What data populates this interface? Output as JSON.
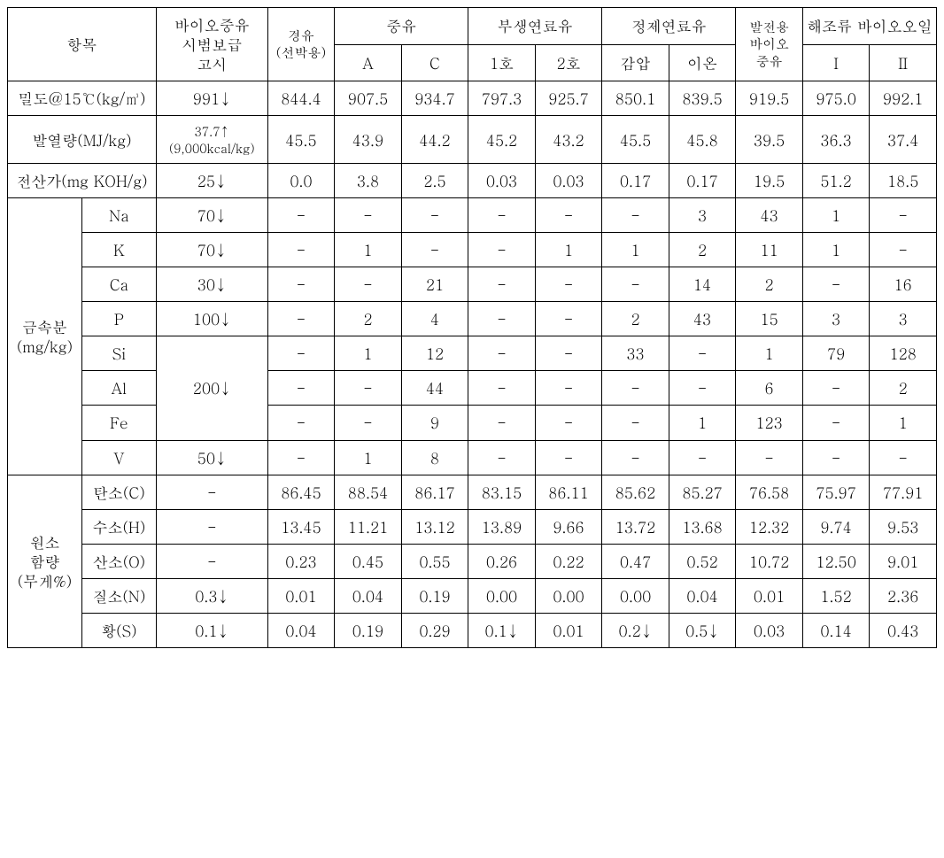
{
  "table": {
    "type": "table",
    "background_color": "#ffffff",
    "border_color": "#000000",
    "font_family": "Batang, serif",
    "font_size_main": 17,
    "font_size_small": 14,
    "headers": {
      "item": "항목",
      "spec": "바이오중유\n시범보급\n고시",
      "diesel": "경유\n(선박용)",
      "heavy_oil": "중유",
      "heavy_oil_A": "A",
      "heavy_oil_C": "C",
      "byproduct": "부생연료유",
      "byproduct_1": "1호",
      "byproduct_2": "2호",
      "refined": "정제연료유",
      "refined_vac": "감압",
      "refined_ion": "이온",
      "power_bio": "발전용\n바이오\n중유",
      "algae": "해조류 바이오오일",
      "algae_I": "Ⅰ",
      "algae_II": "Ⅱ"
    },
    "row_labels": {
      "density": "밀도@15℃(kg/㎥)",
      "calorific": "발열량(MJ/kg)",
      "acid": "전산가(mg KOH/g)",
      "metal_group": "금속분\n(mg/kg)",
      "metal_Na": "Na",
      "metal_K": "K",
      "metal_Ca": "Ca",
      "metal_P": "P",
      "metal_Si": "Si",
      "metal_Al": "Al",
      "metal_Fe": "Fe",
      "metal_V": "V",
      "elem_group": "원소\n함량\n(무게%)",
      "elem_C": "탄소(C)",
      "elem_H": "수소(H)",
      "elem_O": "산소(O)",
      "elem_N": "질소(N)",
      "elem_S": "황(S)"
    },
    "rows": {
      "density": {
        "spec": "991↓",
        "diesel": "844.4",
        "hoA": "907.5",
        "hoC": "934.7",
        "bp1": "797.3",
        "bp2": "925.7",
        "rfV": "850.1",
        "rfI": "839.5",
        "pb": "919.5",
        "agI": "975.0",
        "agII": "992.1"
      },
      "calorific": {
        "spec": "37.7↑\n(9,000kcal/kg)",
        "diesel": "45.5",
        "hoA": "43.9",
        "hoC": "44.2",
        "bp1": "45.2",
        "bp2": "43.2",
        "rfV": "45.5",
        "rfI": "45.8",
        "pb": "39.5",
        "agI": "36.3",
        "agII": "37.4"
      },
      "acid": {
        "spec": "25↓",
        "diesel": "0.0",
        "hoA": "3.8",
        "hoC": "2.5",
        "bp1": "0.03",
        "bp2": "0.03",
        "rfV": "0.17",
        "rfI": "0.17",
        "pb": "19.5",
        "agI": "51.2",
        "agII": "18.5"
      },
      "Na": {
        "spec": "70↓",
        "diesel": "-",
        "hoA": "-",
        "hoC": "-",
        "bp1": "-",
        "bp2": "-",
        "rfV": "-",
        "rfI": "3",
        "pb": "43",
        "agI": "1",
        "agII": "-"
      },
      "K": {
        "spec": "70↓",
        "diesel": "-",
        "hoA": "1",
        "hoC": "-",
        "bp1": "-",
        "bp2": "1",
        "rfV": "1",
        "rfI": "2",
        "pb": "11",
        "agI": "1",
        "agII": "-"
      },
      "Ca": {
        "spec": "30↓",
        "diesel": "-",
        "hoA": "-",
        "hoC": "21",
        "bp1": "-",
        "bp2": "-",
        "rfV": "-",
        "rfI": "14",
        "pb": "2",
        "agI": "-",
        "agII": "16"
      },
      "P": {
        "spec": "100↓",
        "diesel": "-",
        "hoA": "2",
        "hoC": "4",
        "bp1": "-",
        "bp2": "-",
        "rfV": "2",
        "rfI": "43",
        "pb": "15",
        "agI": "3",
        "agII": "3"
      },
      "Si": {
        "spec_merged": "200↓",
        "diesel": "-",
        "hoA": "1",
        "hoC": "12",
        "bp1": "-",
        "bp2": "-",
        "rfV": "33",
        "rfI": "-",
        "pb": "1",
        "agI": "79",
        "agII": "128"
      },
      "Al": {
        "diesel": "-",
        "hoA": "-",
        "hoC": "44",
        "bp1": "-",
        "bp2": "-",
        "rfV": "-",
        "rfI": "-",
        "pb": "6",
        "agI": "-",
        "agII": "2"
      },
      "Fe": {
        "diesel": "-",
        "hoA": "-",
        "hoC": "9",
        "bp1": "-",
        "bp2": "-",
        "rfV": "-",
        "rfI": "1",
        "pb": "123",
        "agI": "-",
        "agII": "1"
      },
      "V": {
        "spec": "50↓",
        "diesel": "-",
        "hoA": "1",
        "hoC": "8",
        "bp1": "-",
        "bp2": "-",
        "rfV": "-",
        "rfI": "-",
        "pb": "-",
        "agI": "-",
        "agII": "-"
      },
      "C": {
        "spec": "-",
        "diesel": "86.45",
        "hoA": "88.54",
        "hoC": "86.17",
        "bp1": "83.15",
        "bp2": "86.11",
        "rfV": "85.62",
        "rfI": "85.27",
        "pb": "76.58",
        "agI": "75.97",
        "agII": "77.91"
      },
      "H": {
        "spec": "-",
        "diesel": "13.45",
        "hoA": "11.21",
        "hoC": "13.12",
        "bp1": "13.89",
        "bp2": "9.66",
        "rfV": "13.72",
        "rfI": "13.68",
        "pb": "12.32",
        "agI": "9.74",
        "agII": "9.53"
      },
      "O": {
        "spec": "-",
        "diesel": "0.23",
        "hoA": "0.45",
        "hoC": "0.55",
        "bp1": "0.26",
        "bp2": "0.22",
        "rfV": "0.47",
        "rfI": "0.52",
        "pb": "10.72",
        "agI": "12.50",
        "agII": "9.01"
      },
      "N": {
        "spec": "0.3↓",
        "diesel": "0.01",
        "hoA": "0.04",
        "hoC": "0.19",
        "bp1": "0.00",
        "bp2": "0.00",
        "rfV": "0.00",
        "rfI": "0.04",
        "pb": "0.01",
        "agI": "1.52",
        "agII": "2.36"
      },
      "S": {
        "spec": "0.1↓",
        "diesel": "0.04",
        "hoA": "0.19",
        "hoC": "0.29",
        "bp1": "0.1↓",
        "bp2": "0.01",
        "rfV": "0.2↓",
        "rfI": "0.5↓",
        "pb": "0.03",
        "agI": "0.14",
        "agII": "0.43"
      }
    }
  }
}
